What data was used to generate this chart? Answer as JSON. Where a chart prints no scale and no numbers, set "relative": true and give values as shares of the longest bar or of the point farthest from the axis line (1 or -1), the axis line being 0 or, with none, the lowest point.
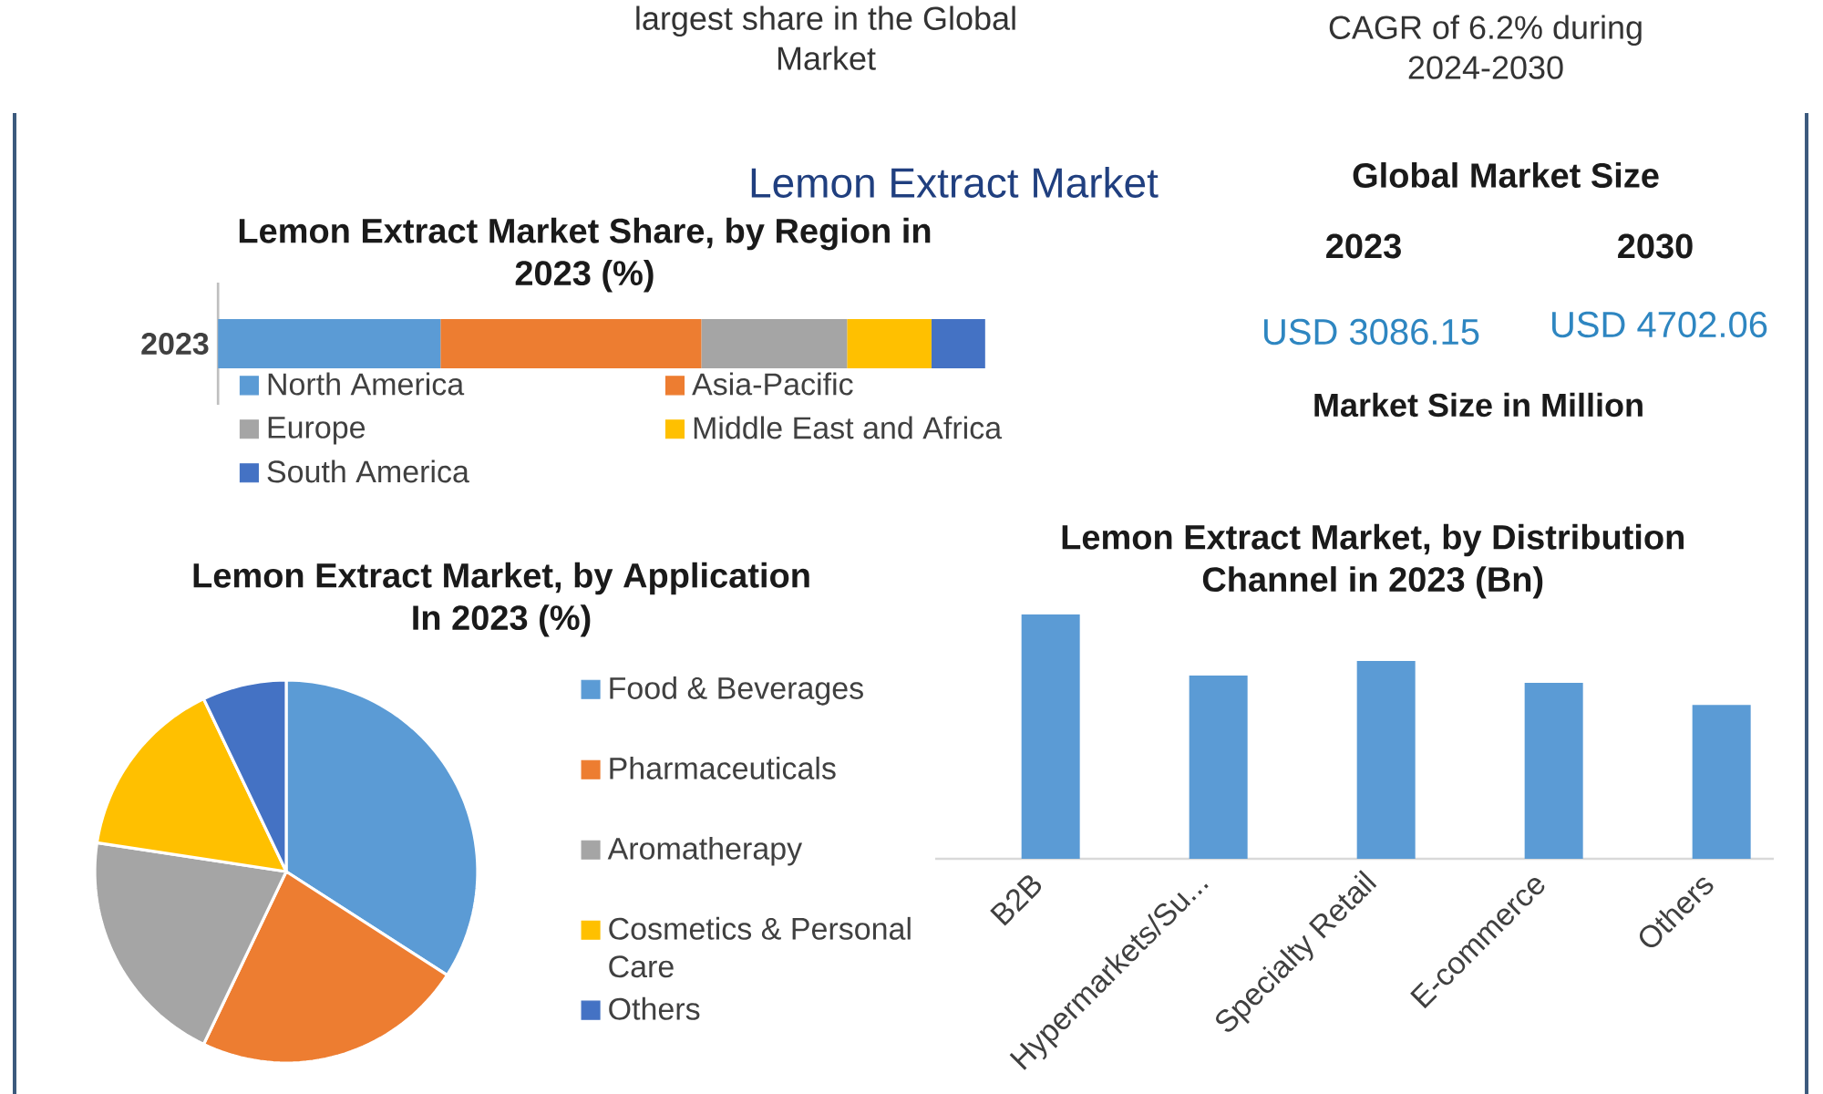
{
  "chart_data": [
    {
      "type": "other",
      "title": "Lemon Extract Market",
      "annotations": [
        "largest share in the Global Market",
        "CAGR of 6.2% during 2024-2030"
      ]
    },
    {
      "type": "other",
      "title": "Global Market Size",
      "categories": [
        "2023",
        "2030"
      ],
      "values": [
        3086.15,
        4702.06
      ],
      "value_labels": [
        "USD 3086.15",
        "USD 4702.06"
      ],
      "color": "#2e86c1",
      "annotations": [
        "Market Size in Million"
      ]
    },
    {
      "type": "bar",
      "orientation": "horizontal",
      "stacked": true,
      "relative": true,
      "title": "Lemon Extract Market Share, by Region in 2023 (%)",
      "categories": [
        "2023"
      ],
      "series": [
        {
          "name": "North America",
          "color": "#5b9bd5",
          "values": [
            0.29
          ]
        },
        {
          "name": "Asia-Pacific",
          "color": "#ed7d31",
          "values": [
            0.34
          ]
        },
        {
          "name": "Europe",
          "color": "#a5a5a5",
          "values": [
            0.19
          ]
        },
        {
          "name": "Middle East and Africa",
          "color": "#ffc000",
          "values": [
            0.11
          ]
        },
        {
          "name": "South America",
          "color": "#4472c4",
          "values": [
            0.07
          ]
        }
      ],
      "legend": "bottom"
    },
    {
      "type": "pie",
      "title": "Lemon Extract Market, by Application In 2023 (%)",
      "categories": [
        "Food & Beverages",
        "Pharmaceuticals",
        "Aromatherapy",
        "Cosmetics & Personal Care",
        "Others"
      ],
      "values": [
        34.1,
        23.0,
        20.3,
        15.5,
        7.1
      ],
      "colors": [
        "#5b9bd5",
        "#ed7d31",
        "#a5a5a5",
        "#ffc000",
        "#4472c4"
      ],
      "legend": "right"
    },
    {
      "type": "bar",
      "relative": true,
      "title": "Lemon Extract Market, by Distribution Channel in 2023 (Bn)",
      "categories": [
        "B2B",
        "Hypermarkets/Su...",
        "Specialty Retail",
        "E-commerce",
        "Others"
      ],
      "values": [
        1,
        0.75,
        0.81,
        0.72,
        0.63
      ],
      "color": "#5b9bd5"
    }
  ]
}
